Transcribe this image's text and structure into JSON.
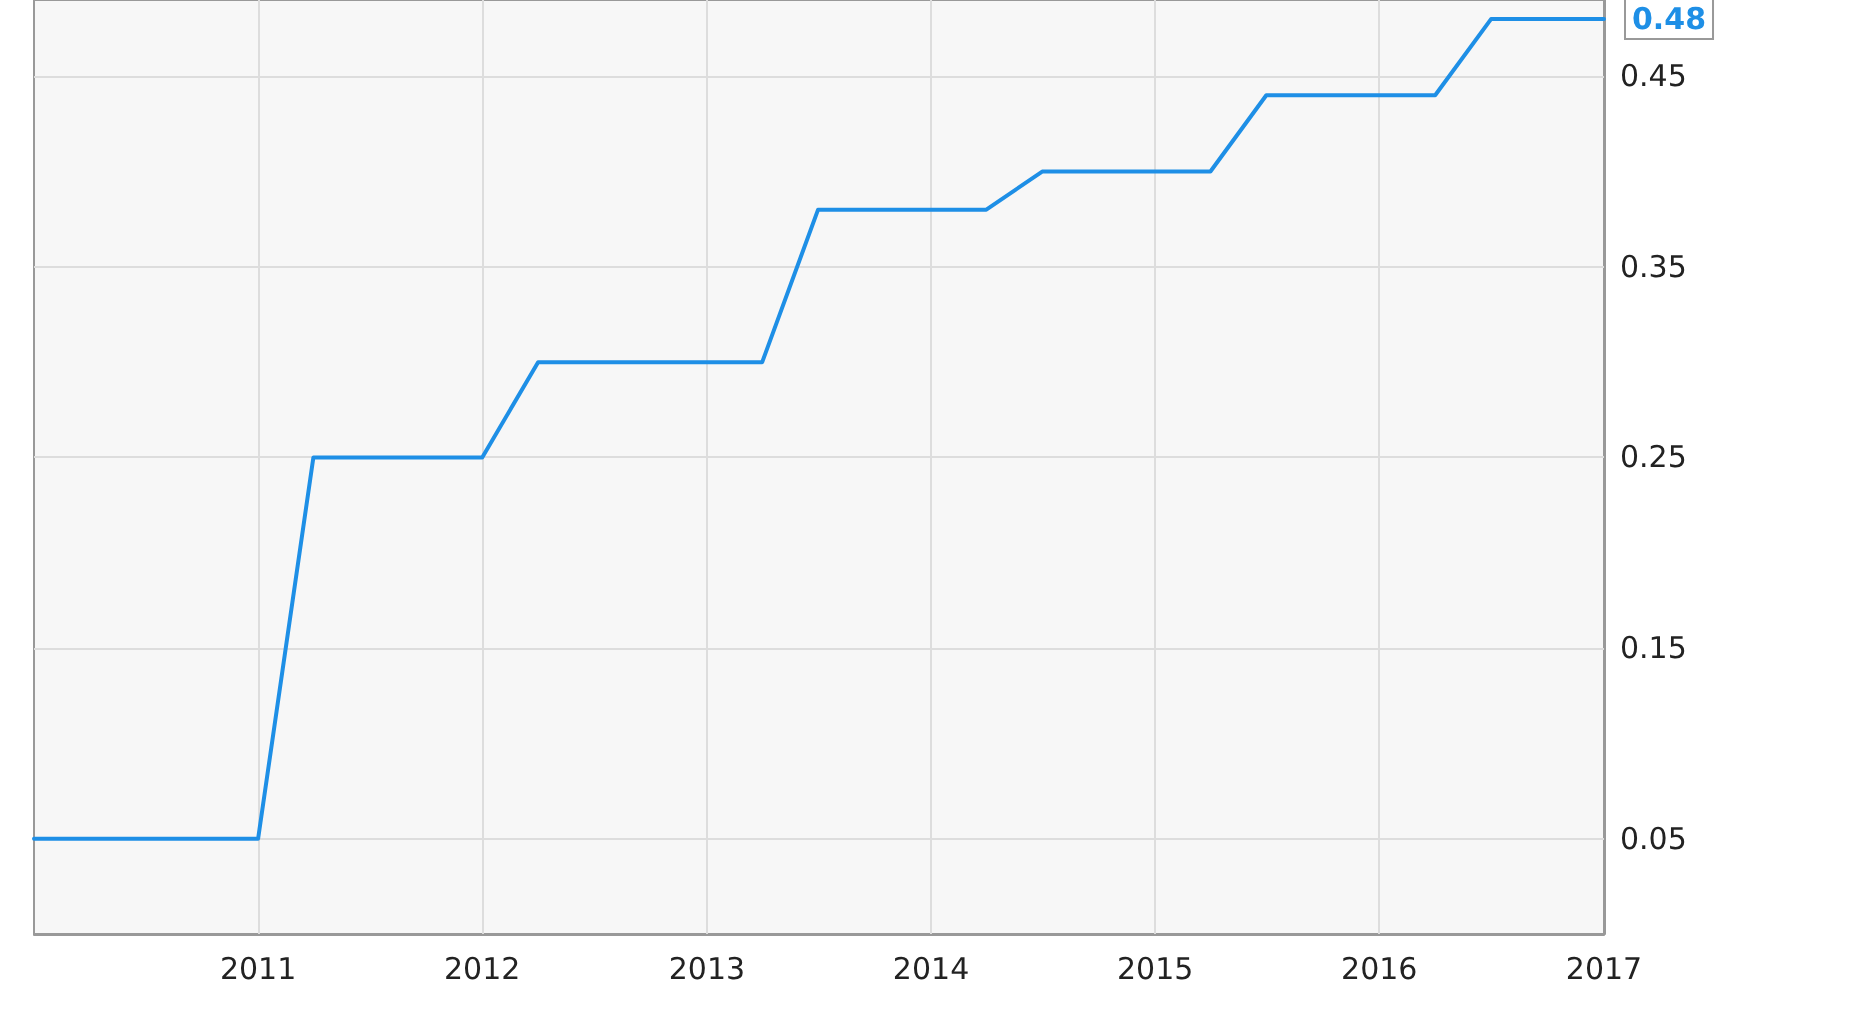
{
  "chart_data": {
    "type": "line",
    "x": [
      "2010-01",
      "2011-01",
      "2011-04",
      "2012-01",
      "2012-04",
      "2013-04",
      "2013-07",
      "2014-04",
      "2014-07",
      "2015-04",
      "2015-07",
      "2016-04",
      "2016-07",
      "2017-01"
    ],
    "series": [
      {
        "color": "#1e8fe6",
        "values": [
          0.05,
          0.05,
          0.25,
          0.25,
          0.3,
          0.3,
          0.38,
          0.38,
          0.4,
          0.4,
          0.44,
          0.44,
          0.48,
          0.48
        ],
        "value_labels": [
          null,
          null,
          null,
          null,
          null,
          null,
          null,
          null,
          null,
          null,
          null,
          null,
          null,
          "0.48"
        ]
      }
    ],
    "xlim": [
      "2010-01",
      "2017-01"
    ],
    "xticks": [
      "2011",
      "2012",
      "2013",
      "2014",
      "2015",
      "2016",
      "2017"
    ],
    "ylim": [
      0,
      0.49
    ],
    "yticks": [
      0.05,
      0.15,
      0.25,
      0.35,
      0.45
    ],
    "grid": true,
    "marker": "none",
    "line_style": "solid"
  }
}
